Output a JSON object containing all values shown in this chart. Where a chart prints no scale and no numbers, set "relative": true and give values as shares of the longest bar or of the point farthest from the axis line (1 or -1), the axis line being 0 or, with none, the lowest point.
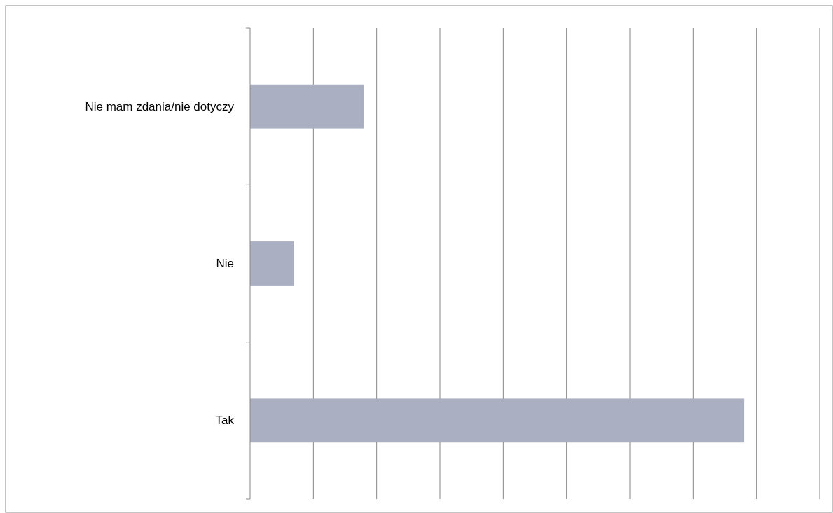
{
  "chart_data": {
    "type": "bar",
    "orientation": "horizontal",
    "relative": true,
    "categories": [
      "Nie mam zdania/nie dotyczy",
      "Nie",
      "Tak"
    ],
    "values": [
      0.231,
      0.089,
      1
    ],
    "color": "#aab0c2",
    "grid": "x"
  }
}
